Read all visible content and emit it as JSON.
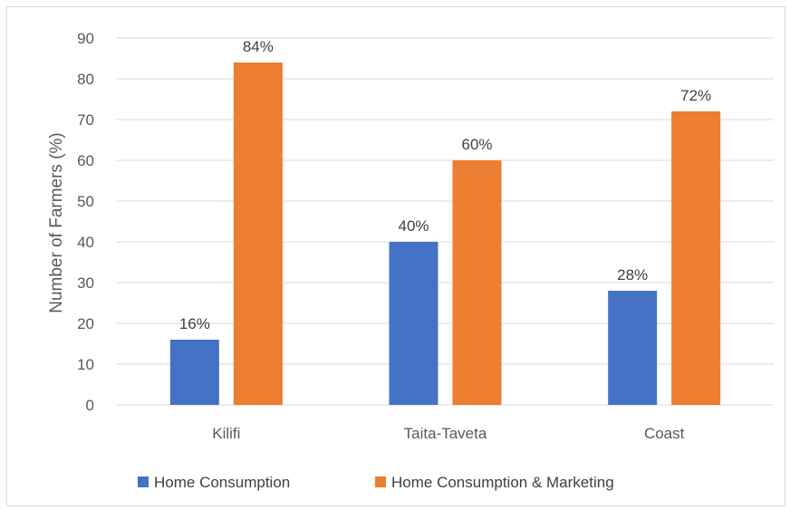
{
  "chart_data": {
    "type": "bar",
    "categories": [
      "Kilifi",
      "Taita-Taveta",
      "Coast"
    ],
    "series": [
      {
        "name": "Home Consumption",
        "values": [
          16,
          40,
          28
        ],
        "labels": [
          "16%",
          "40%",
          "28%"
        ],
        "color": "#4472C4"
      },
      {
        "name": "Home Consumption & Marketing",
        "values": [
          84,
          60,
          72
        ],
        "labels": [
          "84%",
          "60%",
          "72%"
        ],
        "color": "#ED7D31"
      }
    ],
    "title": "",
    "xlabel": "",
    "ylabel": "Number of Farmers (%)",
    "ylim": [
      0,
      90
    ],
    "yticks": [
      0,
      10,
      20,
      30,
      40,
      50,
      60,
      70,
      80,
      90
    ],
    "grid": true,
    "legend": "bottom"
  }
}
